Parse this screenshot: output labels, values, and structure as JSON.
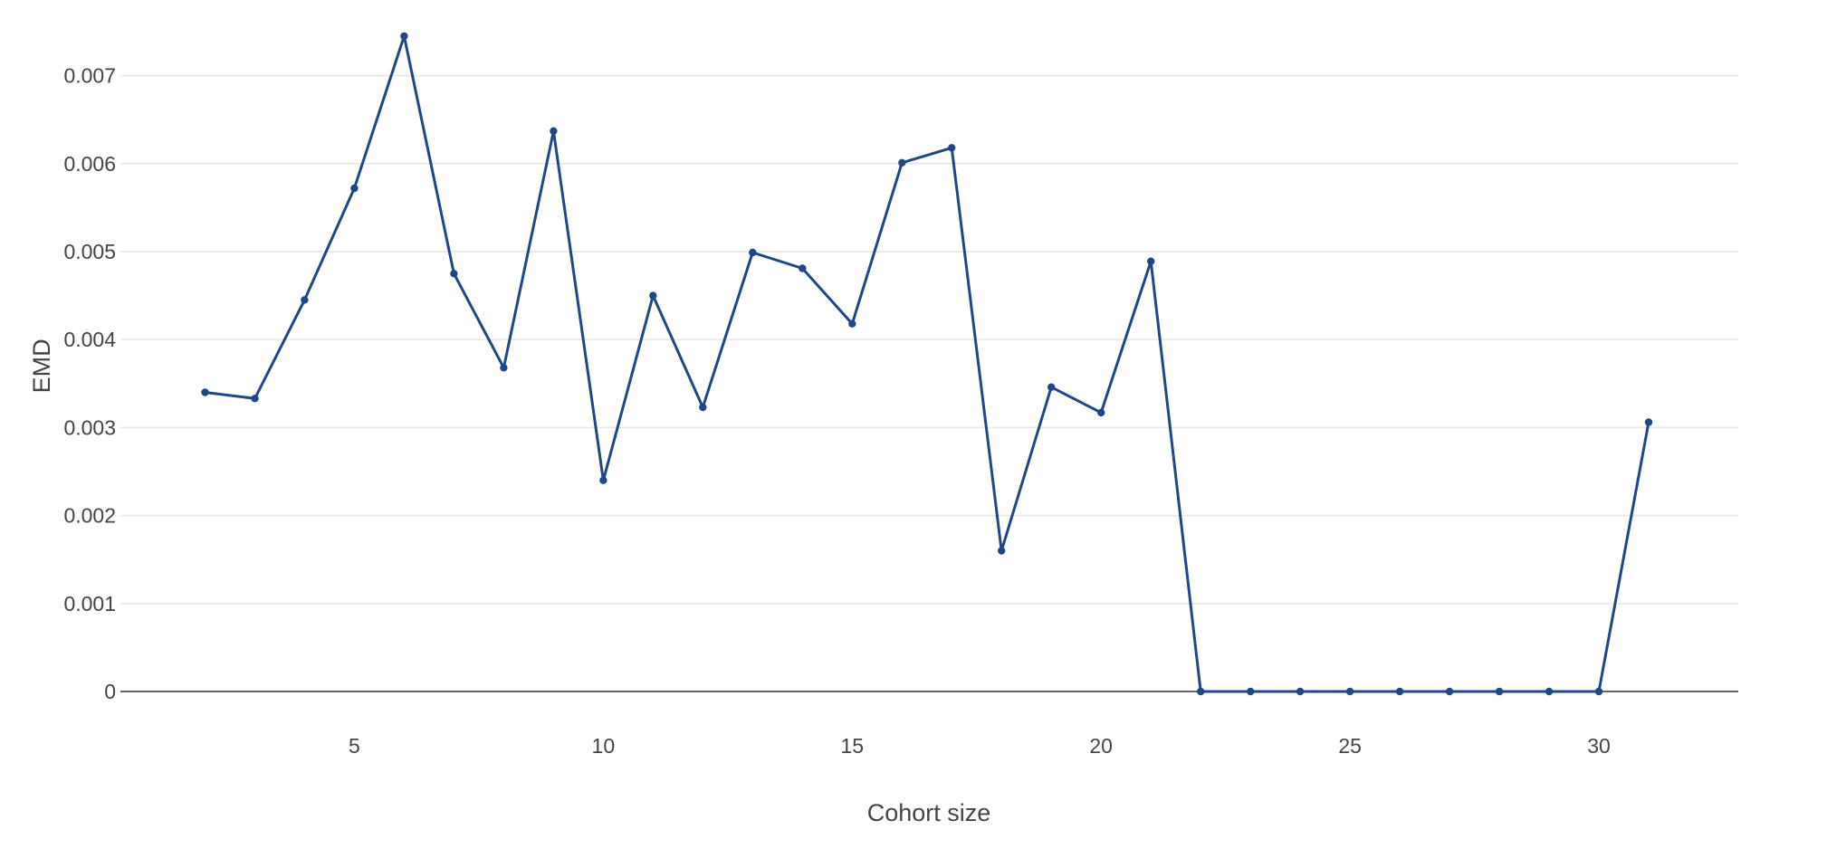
{
  "chart_data": {
    "type": "line",
    "xlabel": "Cohort size",
    "ylabel": "EMD",
    "xlim": [
      0.3,
      32.8
    ],
    "ylim": [
      -0.0007,
      0.0075
    ],
    "x_ticks": [
      5,
      10,
      15,
      20,
      25,
      30
    ],
    "y_ticks": [
      0,
      0.001,
      0.002,
      0.003,
      0.004,
      0.005,
      0.006,
      0.007
    ],
    "y_tick_labels": [
      "0",
      "0.001",
      "0.002",
      "0.003",
      "0.004",
      "0.005",
      "0.006",
      "0.007"
    ],
    "grid": true,
    "legend": "none",
    "colors": {
      "line": "#1f4788",
      "grid": "#e6e6e6",
      "zero_line": "#444444"
    },
    "series": [
      {
        "x": [
          2,
          3,
          4,
          5,
          6,
          7,
          8,
          9,
          10,
          11,
          12,
          13,
          14,
          15,
          16,
          17,
          18,
          19,
          20,
          21,
          22,
          23,
          24,
          25,
          26,
          27,
          28,
          29,
          30,
          31
        ],
        "values": [
          0.0034,
          0.00333,
          0.00445,
          0.00572,
          0.00745,
          0.00475,
          0.00368,
          0.00637,
          0.0024,
          0.0045,
          0.00323,
          0.00499,
          0.00481,
          0.00418,
          0.00601,
          0.00618,
          0.0016,
          0.00346,
          0.00317,
          0.00489,
          0,
          0,
          0,
          0,
          0,
          0,
          0,
          0,
          0,
          0.00306
        ]
      }
    ]
  }
}
